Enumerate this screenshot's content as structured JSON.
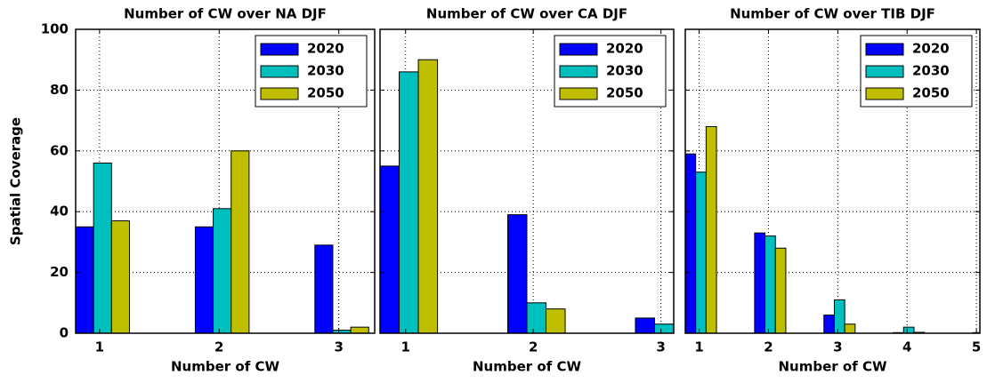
{
  "chart_data": [
    {
      "type": "bar",
      "title": "Number of CW over NA DJF",
      "xlabel": "Number of CW",
      "ylabel": "Spatial Coverage",
      "x": [
        1,
        2,
        3
      ],
      "series": [
        {
          "name": "2020",
          "color": "#0000ff",
          "values": [
            35,
            35,
            29
          ]
        },
        {
          "name": "2030",
          "color": "#00bfbf",
          "values": [
            56,
            41,
            1
          ]
        },
        {
          "name": "2050",
          "color": "#bfbf00",
          "values": [
            37,
            60,
            2
          ]
        }
      ],
      "xlim": [
        0.8,
        3.3
      ],
      "xticks": [
        1,
        2,
        3
      ],
      "ylim": [
        0,
        100
      ],
      "yticks": [
        0,
        20,
        40,
        60,
        80,
        100
      ],
      "grid": true,
      "legend": "upper right"
    },
    {
      "type": "bar",
      "title": "Number of CW over CA DJF",
      "xlabel": "Number of CW",
      "x": [
        1,
        2,
        3
      ],
      "series": [
        {
          "name": "2020",
          "color": "#0000ff",
          "values": [
            55,
            39,
            5
          ]
        },
        {
          "name": "2030",
          "color": "#00bfbf",
          "values": [
            86,
            10,
            3
          ]
        },
        {
          "name": "2050",
          "color": "#bfbf00",
          "values": [
            90,
            8,
            0
          ]
        }
      ],
      "xlim": [
        0.8,
        3.1
      ],
      "xticks": [
        1,
        2,
        3
      ],
      "ylim": [
        0,
        100
      ],
      "yticks": [
        0,
        20,
        40,
        60,
        80,
        100
      ],
      "grid": true,
      "legend": "upper right"
    },
    {
      "type": "bar",
      "title": "Number of CW over TIB DJF",
      "xlabel": "Number of CW",
      "x": [
        1,
        2,
        3,
        4,
        5
      ],
      "series": [
        {
          "name": "2020",
          "color": "#0000ff",
          "values": [
            59,
            33,
            6,
            0.2,
            0
          ]
        },
        {
          "name": "2030",
          "color": "#00bfbf",
          "values": [
            53,
            32,
            11,
            2,
            0.2
          ]
        },
        {
          "name": "2050",
          "color": "#bfbf00",
          "values": [
            68,
            28,
            3,
            0.3,
            0
          ]
        }
      ],
      "xlim": [
        0.8,
        5.05
      ],
      "xticks": [
        1,
        2,
        3,
        4,
        5
      ],
      "ylim": [
        0,
        100
      ],
      "yticks": [
        0,
        20,
        40,
        60,
        80,
        100
      ],
      "grid": true,
      "legend": "upper right"
    }
  ]
}
